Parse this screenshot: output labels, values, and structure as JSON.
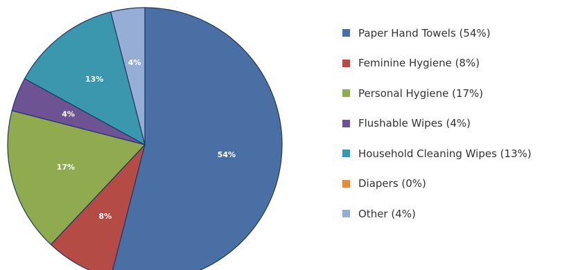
{
  "chart_data": {
    "type": "pie",
    "title": "",
    "slices": [
      {
        "name": "Paper Hand Towels",
        "value": 54,
        "label": "54%",
        "legend": "Paper Hand Towels (54%)",
        "color": "#4a6fa5",
        "show_label": true
      },
      {
        "name": "Feminine Hygiene",
        "value": 8,
        "label": "8%",
        "legend": "Feminine Hygiene (8%)",
        "color": "#b44b45",
        "show_label": true
      },
      {
        "name": "Personal Hygiene",
        "value": 17,
        "label": "17%",
        "legend": "Personal Hygiene (17%)",
        "color": "#8faa4f",
        "show_label": true
      },
      {
        "name": "Flushable Wipes",
        "value": 4,
        "label": "4%",
        "legend": "Flushable Wipes (4%)",
        "color": "#6e5394",
        "show_label": true
      },
      {
        "name": "Household Cleaning Wipes",
        "value": 13,
        "label": "13%",
        "legend": "Household Cleaning Wipes (13%)",
        "color": "#3b97ad",
        "show_label": true
      },
      {
        "name": "Diapers",
        "value": 0,
        "label": "0%",
        "legend": "Diapers (0%)",
        "color": "#e08d3c",
        "show_label": false
      },
      {
        "name": "Other",
        "value": 4,
        "label": "4%",
        "legend": "Other (4%)",
        "color": "#96aed6",
        "show_label": true
      }
    ],
    "start_angle": "12 o'clock",
    "direction": "clockwise",
    "legend_position": "right"
  }
}
